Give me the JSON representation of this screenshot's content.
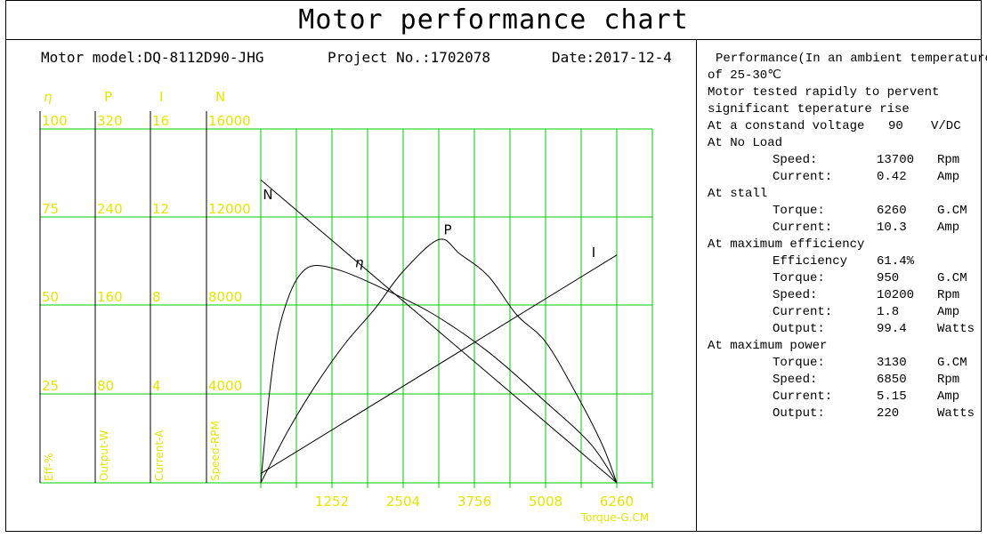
{
  "title": "Motor performance chart",
  "header": {
    "model": "Motor model:DQ-8112D90-JHG",
    "project": "Project No.:1702078",
    "date": "Date:2017-12-4"
  },
  "performance": {
    "intro": [
      "Performance(In an ambient temperature",
      "of 25-30℃",
      "Motor tested rapidly to pervent",
      "significant teperature rise"
    ],
    "voltage": {
      "label": "At a constand voltage",
      "value": "90",
      "unit": "V/DC"
    },
    "no_load": {
      "heading": "At No Load",
      "rows": [
        {
          "label": "Speed:",
          "value": "13700",
          "unit": "Rpm"
        },
        {
          "label": "Current:",
          "value": "0.42",
          "unit": "Amp"
        }
      ]
    },
    "stall": {
      "heading": "At stall",
      "rows": [
        {
          "label": "Torque:",
          "value": "6260",
          "unit": "G.CM"
        },
        {
          "label": "Current:",
          "value": "10.3",
          "unit": "Amp"
        }
      ]
    },
    "max_eff": {
      "heading": "At maximum efficiency",
      "rows": [
        {
          "label": "Efficiency",
          "value": "61.4%",
          "unit": ""
        },
        {
          "label": "Torque:",
          "value": "950",
          "unit": "G.CM"
        },
        {
          "label": "Speed:",
          "value": "10200",
          "unit": "Rpm"
        },
        {
          "label": "Current:",
          "value": "1.8",
          "unit": "Amp"
        },
        {
          "label": "Output:",
          "value": "99.4",
          "unit": "Watts"
        }
      ]
    },
    "max_power": {
      "heading": "At maximum power",
      "rows": [
        {
          "label": "Torque:",
          "value": "3130",
          "unit": "G.CM"
        },
        {
          "label": "Speed:",
          "value": "6850",
          "unit": "Rpm"
        },
        {
          "label": "Current:",
          "value": "5.15",
          "unit": "Amp"
        },
        {
          "label": "Output:",
          "value": "220",
          "unit": "Watts"
        }
      ]
    }
  },
  "chart_data": {
    "type": "line",
    "xlabel": "Torque-G.CM",
    "x_ticks": [
      "1252",
      "2504",
      "3756",
      "5008",
      "6260"
    ],
    "xlim": [
      0,
      6260
    ],
    "scale_columns": [
      {
        "symbol": "η",
        "label": "Eff-%",
        "ticks": [
          "100",
          "75",
          "50",
          "25"
        ],
        "max": 100
      },
      {
        "symbol": "P",
        "label": "Output-W",
        "ticks": [
          "320",
          "240",
          "160",
          "80"
        ],
        "max": 320
      },
      {
        "symbol": "I",
        "label": "Current-A",
        "ticks": [
          "16",
          "12",
          "8",
          "4"
        ],
        "max": 16
      },
      {
        "symbol": "N",
        "label": "Speed-RPM",
        "ticks": [
          "16000",
          "12000",
          "8000",
          "4000"
        ],
        "max": 16000
      }
    ],
    "series": [
      {
        "name": "N",
        "scale": 3,
        "x": [
          0,
          6260
        ],
        "y": [
          13700,
          0
        ]
      },
      {
        "name": "η",
        "scale": 0,
        "x": [
          0,
          150,
          300,
          500,
          700,
          950,
          1400,
          2000,
          3000,
          4000,
          5000,
          5800,
          6260
        ],
        "y": [
          0,
          25,
          42,
          53,
          59,
          61.4,
          60,
          56,
          48,
          37,
          23,
          11,
          0
        ]
      },
      {
        "name": "P",
        "scale": 1,
        "x": [
          0,
          500,
          1000,
          1500,
          2000,
          2500,
          3130,
          3500,
          4000,
          4500,
          5000,
          5500,
          6000,
          6260
        ],
        "y": [
          0,
          49,
          91,
          127,
          157,
          191,
          220,
          207,
          187,
          152,
          128,
          85,
          35,
          0
        ]
      },
      {
        "name": "I",
        "scale": 2,
        "x": [
          0,
          6260
        ],
        "y": [
          0.42,
          10.3
        ]
      }
    ],
    "grid": true,
    "colors": {
      "grid": "#00cc00",
      "labels": "#e5e500",
      "curves": "#000000"
    }
  }
}
